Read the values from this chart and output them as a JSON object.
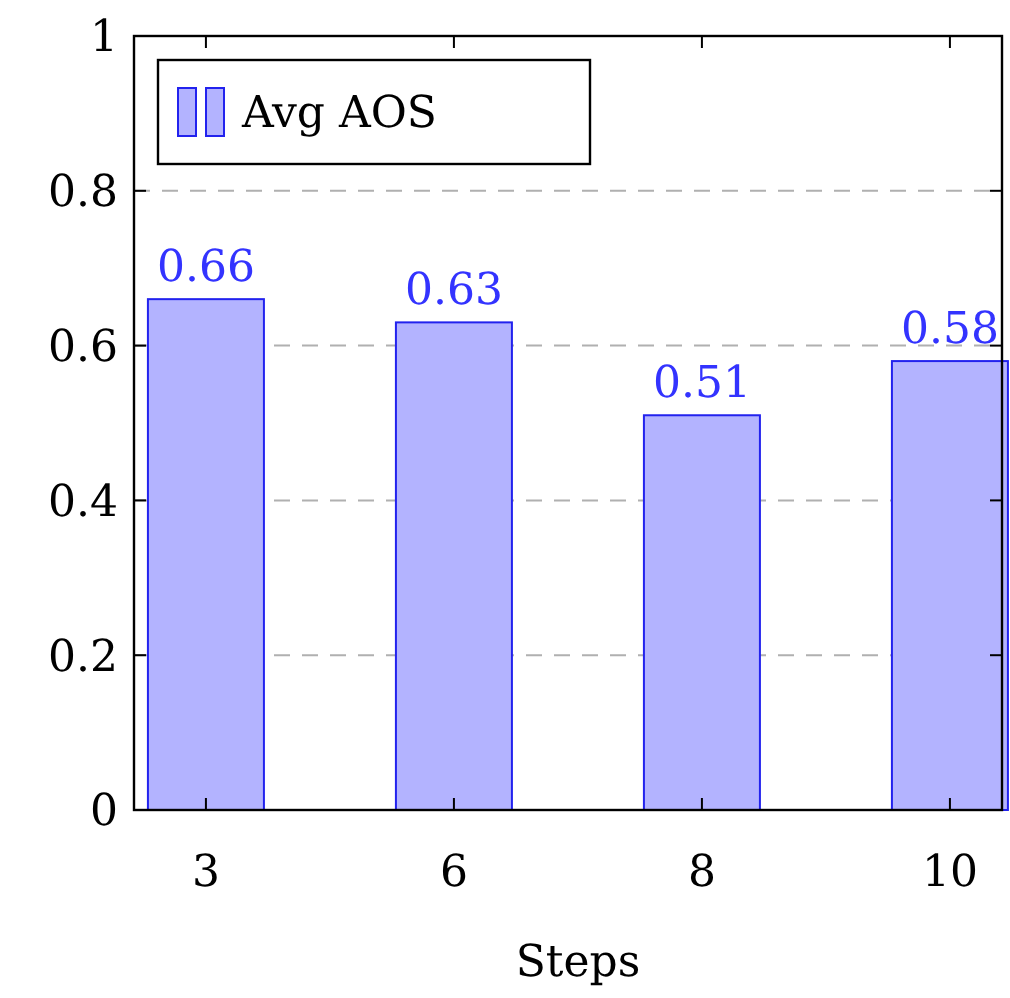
{
  "chart_data": {
    "type": "bar",
    "categories": [
      "3",
      "6",
      "8",
      "10"
    ],
    "xlabel": "Steps",
    "series": [
      {
        "name": "Avg AOS",
        "color": "#b3b3ff",
        "values": [
          0.66,
          0.63,
          0.51,
          0.58
        ]
      }
    ],
    "ylim": [
      0,
      1
    ],
    "yticks": [
      0,
      0.2,
      0.4,
      0.6,
      0.8,
      1
    ],
    "grid": "y",
    "legend": "top left",
    "data_labels": true
  }
}
